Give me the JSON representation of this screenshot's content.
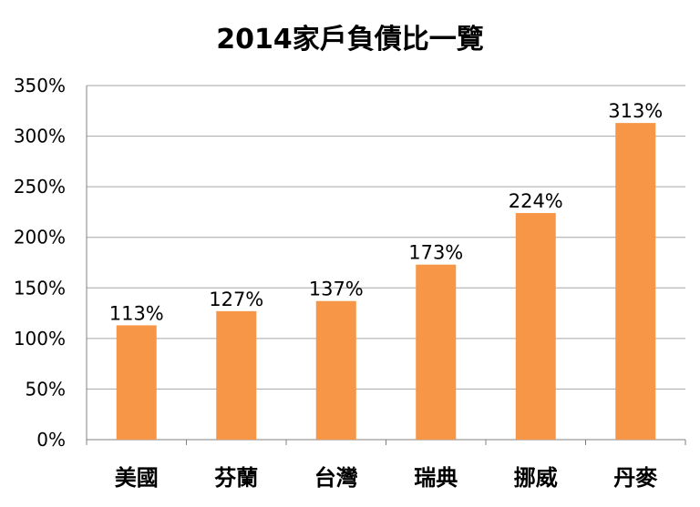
{
  "chart_data": {
    "type": "bar",
    "title": "2014家戶負債比一覽",
    "xlabel": "",
    "ylabel": "",
    "categories": [
      "美國",
      "芬蘭",
      "台灣",
      "瑞典",
      "挪威",
      "丹麥"
    ],
    "values": [
      113,
      127,
      137,
      173,
      224,
      313
    ],
    "data_labels": [
      "113%",
      "127%",
      "137%",
      "173%",
      "224%",
      "313%"
    ],
    "ylim": [
      0,
      350
    ],
    "y_ticks": [
      0,
      50,
      100,
      150,
      200,
      250,
      300,
      350
    ],
    "y_tick_labels": [
      "0%",
      "50%",
      "100%",
      "150%",
      "200%",
      "250%",
      "300%",
      "350%"
    ],
    "grid": true,
    "legend": "none",
    "bar_color": "#F79646",
    "grid_color": "#A6A6A6"
  }
}
